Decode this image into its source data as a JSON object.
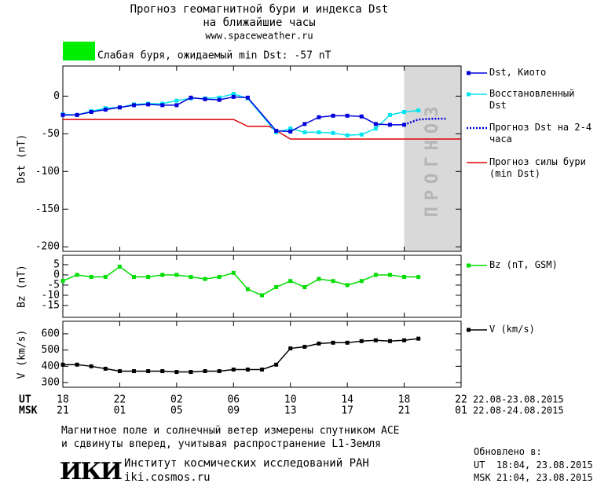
{
  "header": {
    "title_lines": [
      "Прогноз геомагнитной бури и индекса Dst",
      "на ближайшие часы"
    ],
    "source": "www.spaceweather.ru",
    "status": "Слабая буря, ожидаемый min Dst: -57 nT",
    "status_color": "#00ee00"
  },
  "chart_data": [
    {
      "type": "line",
      "ylabel": "Dst (nT)",
      "xlim": [
        0,
        28
      ],
      "ylim": [
        -206,
        40
      ],
      "yticks": [
        -200,
        -150,
        -100,
        -50,
        0
      ],
      "forecast_x": [
        24,
        28
      ],
      "forecast_label": "ПРОГНОЗ",
      "series": [
        {
          "name": "Dst, Киото",
          "color": "#0000dd",
          "style": "solid",
          "marker": true,
          "x": [
            0,
            1,
            2,
            3,
            4,
            5,
            6,
            7,
            8,
            9,
            10,
            11,
            12,
            13,
            15,
            16,
            17,
            18,
            19,
            20,
            21,
            22,
            23,
            24
          ],
          "values": [
            -25,
            -25,
            -21,
            -18,
            -15,
            -12,
            -11,
            -12,
            -12,
            -2,
            -4,
            -5,
            -1,
            -2,
            -46,
            -47,
            -37,
            -28,
            -26,
            -26,
            -27,
            -37,
            -38,
            -38
          ]
        },
        {
          "name": "Восстановленный Dst",
          "color": "#00e5ee",
          "style": "solid",
          "marker": true,
          "x": [
            0,
            1,
            2,
            3,
            4,
            5,
            6,
            7,
            8,
            9,
            10,
            11,
            12,
            13,
            15,
            16,
            17,
            18,
            19,
            20,
            21,
            22,
            23,
            24,
            25
          ],
          "values": [
            -24,
            -25,
            -20,
            -16,
            -15,
            -11,
            -10,
            -10,
            -6,
            -3,
            -3,
            -2,
            3,
            -3,
            -48,
            -43,
            -48,
            -48,
            -49,
            -52,
            -51,
            -43,
            -25,
            -21,
            -19
          ]
        },
        {
          "name": "Прогноз Dst на 2-4 часа",
          "color": "#0000dd",
          "style": "dotted",
          "marker": false,
          "x": [
            24,
            25,
            26,
            27
          ],
          "values": [
            -38,
            -31,
            -30,
            -30
          ]
        },
        {
          "name": "Прогноз силы бури (min Dst)",
          "color": "#dd0000",
          "style": "solid",
          "marker": false,
          "x": [
            0,
            12,
            13,
            14.5,
            16,
            28
          ],
          "values": [
            -31,
            -31,
            -40,
            -40,
            -57,
            -57
          ]
        }
      ]
    },
    {
      "type": "line",
      "ylabel": "Bz (nT)",
      "xlim": [
        0,
        28
      ],
      "ylim": [
        -20.8,
        9.6
      ],
      "yticks": [
        -15,
        -10,
        -5,
        0,
        5
      ],
      "series": [
        {
          "name": "Bz (nT, GSM)",
          "color": "#00dd00",
          "style": "solid",
          "marker": true,
          "x": [
            0,
            1,
            2,
            3,
            4,
            5,
            6,
            7,
            8,
            9,
            10,
            11,
            12,
            13,
            14,
            15,
            16,
            17,
            18,
            19,
            20,
            21,
            22,
            23,
            24,
            25
          ],
          "values": [
            -3,
            0,
            -1,
            -1,
            4,
            -1,
            -1,
            0,
            0,
            -1,
            -2,
            -1,
            1,
            -7,
            -10,
            -6,
            -3,
            -6,
            -2,
            -3,
            -5,
            -3,
            0,
            0,
            -1,
            -1
          ]
        }
      ]
    },
    {
      "type": "line",
      "ylabel": "V (km/s)",
      "xlim": [
        0,
        28
      ],
      "ylim": [
        271,
        677
      ],
      "yticks": [
        300,
        400,
        500,
        600
      ],
      "xlabel": "UT",
      "xticks": [
        {
          "value": 0,
          "label": "18"
        },
        {
          "value": 4,
          "label": "22"
        },
        {
          "value": 8,
          "label": "02"
        },
        {
          "value": 12,
          "label": "06"
        },
        {
          "value": 16,
          "label": "10"
        },
        {
          "value": 20,
          "label": "14"
        },
        {
          "value": 24,
          "label": "18"
        },
        {
          "value": 28,
          "label": "22"
        }
      ],
      "xrange": "22.08-23.08.2015",
      "x2label": "MSK",
      "x2ticks": [
        {
          "value": 0,
          "label": "21"
        },
        {
          "value": 4,
          "label": "01"
        },
        {
          "value": 8,
          "label": "05"
        },
        {
          "value": 12,
          "label": "09"
        },
        {
          "value": 16,
          "label": "13"
        },
        {
          "value": 20,
          "label": "17"
        },
        {
          "value": 24,
          "label": "21"
        },
        {
          "value": 28,
          "label": "01"
        }
      ],
      "x2range": "22.08-24.08.2015",
      "series": [
        {
          "name": "V (km/s)",
          "color": "#000000",
          "style": "solid",
          "marker": true,
          "x": [
            0,
            1,
            2,
            3,
            4,
            5,
            6,
            7,
            8,
            9,
            10,
            11,
            12,
            13,
            14,
            15,
            16,
            17,
            18,
            19,
            20,
            21,
            22,
            23,
            24,
            25
          ],
          "values": [
            410,
            410,
            400,
            385,
            370,
            370,
            370,
            370,
            365,
            365,
            370,
            370,
            380,
            380,
            380,
            410,
            510,
            520,
            540,
            545,
            545,
            555,
            560,
            555,
            560,
            570
          ]
        }
      ]
    }
  ],
  "footer": {
    "note_lines": [
      "Магнитное поле и солнечный ветер измерены спутником ACE",
      "и сдвинуты вперед, учитывая распространение L1-Земля"
    ],
    "logo": "ИКИ",
    "institute": "Институт космических исследований РАН",
    "site": "iki.cosmos.ru",
    "updated": "Обновлено в:",
    "updated_ut": "UT  18:04, 23.08.2015",
    "updated_msk": "MSK 21:04, 23.08.2015"
  }
}
